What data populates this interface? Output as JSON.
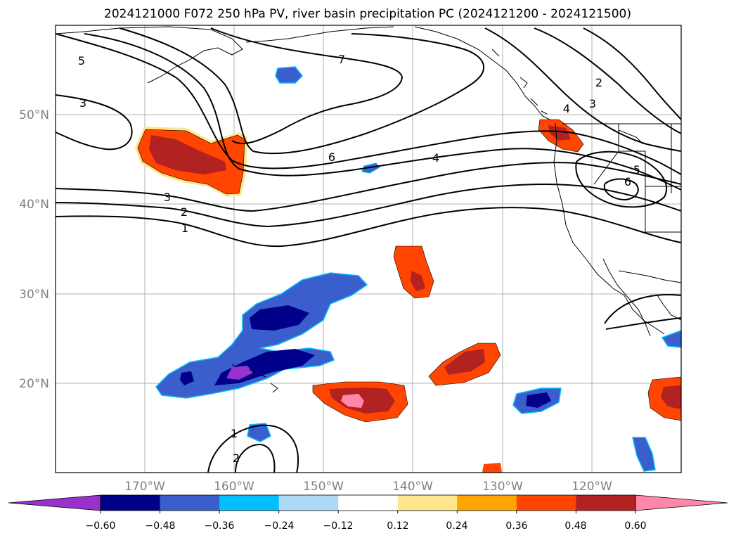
{
  "title": "2024121000 F072 250 hPa PV, river basin precipitation PC (2024121200 - 2024121500)",
  "map": {
    "lat_ticks": [
      {
        "lat": 50,
        "label": "50°N"
      },
      {
        "lat": 40,
        "label": "40°N"
      },
      {
        "lat": 30,
        "label": "30°N"
      },
      {
        "lat": 20,
        "label": "20°N"
      }
    ],
    "lon_ticks": [
      {
        "lon": -170,
        "label": "170°W"
      },
      {
        "lon": -160,
        "label": "160°W"
      },
      {
        "lon": -150,
        "label": "150°W"
      },
      {
        "lon": -140,
        "label": "140°W"
      },
      {
        "lon": -130,
        "label": "130°W"
      },
      {
        "lon": -120,
        "label": "120°W"
      }
    ],
    "extent": {
      "lon_min": -180,
      "lon_max": -110,
      "lat_min": 10,
      "lat_max": 60
    },
    "contour_labels": [
      "5",
      "3",
      "7",
      "6",
      "4",
      "3",
      "2",
      "1",
      "2",
      "3",
      "4",
      "5",
      "6",
      "1",
      "2"
    ]
  },
  "colorbar": {
    "ticks": [
      "−0.60",
      "−0.48",
      "−0.36",
      "−0.24",
      "−0.12",
      "0.12",
      "0.24",
      "0.36",
      "0.48",
      "0.60"
    ],
    "colors": [
      "#9932cc",
      "#00008b",
      "#3a5fcd",
      "#00bfff",
      "#add8f6",
      "#ffffff",
      "#ffe68a",
      "#ffa500",
      "#ff4500",
      "#b22222",
      "#ff88aa"
    ],
    "extend": "both"
  }
}
